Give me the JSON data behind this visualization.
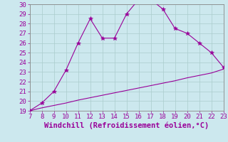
{
  "x": [
    7,
    8,
    9,
    10,
    11,
    12,
    13,
    14,
    15,
    16,
    17,
    18,
    19,
    20,
    21,
    22,
    23
  ],
  "y_line1": [
    19,
    19.8,
    21.0,
    23.2,
    26.0,
    28.5,
    26.5,
    26.5,
    29.0,
    30.5,
    30.5,
    29.5,
    27.5,
    27.0,
    26.0,
    25.0,
    23.5
  ],
  "y_line2": [
    19.0,
    19.3,
    19.55,
    19.8,
    20.1,
    20.35,
    20.6,
    20.85,
    21.1,
    21.35,
    21.6,
    21.85,
    22.1,
    22.4,
    22.65,
    22.9,
    23.3
  ],
  "line_color": "#990099",
  "marker": "*",
  "marker_size": 4,
  "bg_color": "#cce8ee",
  "grid_color": "#aacccc",
  "xlabel": "Windchill (Refroidissement éolien,°C)",
  "xlim": [
    7,
    23
  ],
  "ylim": [
    19,
    30
  ],
  "xticks": [
    7,
    8,
    9,
    10,
    11,
    12,
    13,
    14,
    15,
    16,
    17,
    18,
    19,
    20,
    21,
    22,
    23
  ],
  "yticks": [
    19,
    20,
    21,
    22,
    23,
    24,
    25,
    26,
    27,
    28,
    29,
    30
  ],
  "tick_color": "#990099",
  "tick_fontsize": 6.5,
  "xlabel_fontsize": 7.5,
  "xlabel_color": "#990099",
  "spine_color": "#888888"
}
